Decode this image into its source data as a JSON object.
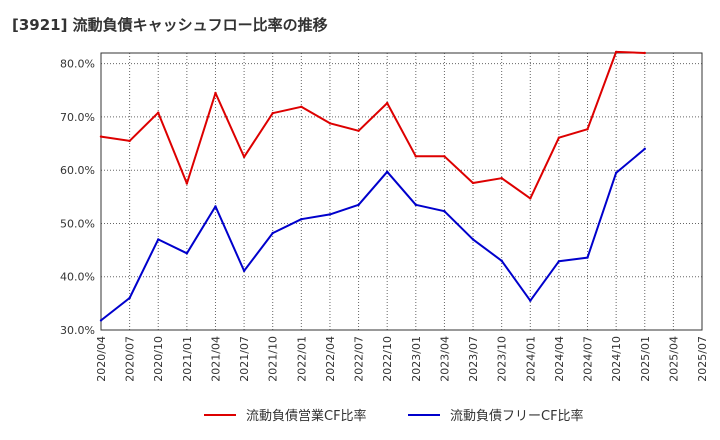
{
  "chart_data": {
    "type": "line",
    "title": "[3921]  流動負債キャッシュフロー比率の推移",
    "xlabel": "",
    "ylabel": "",
    "ylim": [
      30,
      82
    ],
    "yticks": [
      30,
      40,
      50,
      60,
      70,
      80
    ],
    "ytick_labels": [
      "30.0%",
      "40.0%",
      "50.0%",
      "60.0%",
      "70.0%",
      "80.0%"
    ],
    "x_labels": [
      "2020/04",
      "2020/07",
      "2020/10",
      "2021/01",
      "2021/04",
      "2021/07",
      "2021/10",
      "2022/01",
      "2022/04",
      "2022/07",
      "2022/10",
      "2023/01",
      "2023/04",
      "2023/07",
      "2023/10",
      "2024/01",
      "2024/04",
      "2024/07",
      "2024/10",
      "2025/01",
      "2025/04",
      "2025/07"
    ],
    "grid": true,
    "legend_position": "bottom",
    "series": [
      {
        "name": "流動負債営業CF比率",
        "color": "#dd0000",
        "values": [
          66.3,
          65.5,
          70.8,
          57.5,
          74.5,
          62.5,
          70.7,
          71.9,
          68.8,
          67.4,
          72.6,
          62.6,
          62.6,
          57.6,
          58.5,
          54.7,
          66.1,
          67.7,
          82.2,
          82.0,
          null,
          null
        ]
      },
      {
        "name": "流動負債フリーCF比率",
        "color": "#0000cc",
        "values": [
          31.8,
          36.0,
          47.0,
          44.4,
          53.2,
          41.1,
          48.2,
          50.8,
          51.7,
          53.5,
          59.7,
          53.5,
          52.3,
          47.0,
          43.0,
          35.5,
          42.9,
          43.6,
          59.5,
          64.0,
          null,
          null
        ]
      }
    ]
  }
}
